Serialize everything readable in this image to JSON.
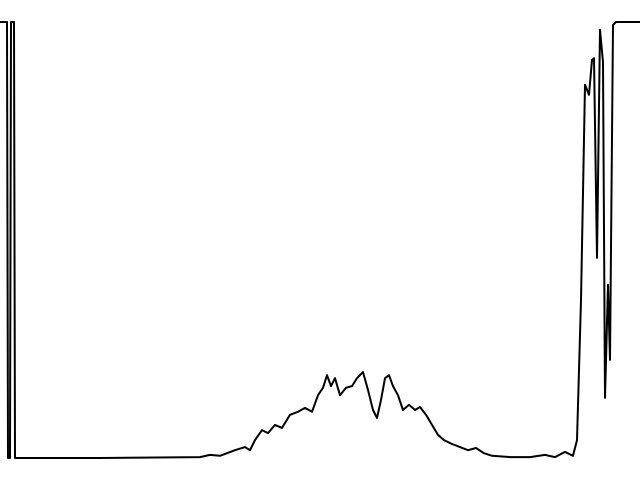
{
  "chart_data": {
    "type": "line",
    "color": "#000000",
    "xlim": [
      0,
      640
    ],
    "ylim": [
      0,
      100
    ],
    "x": [
      0,
      7,
      8,
      10,
      11,
      14,
      15,
      100,
      200,
      210,
      220,
      235,
      245,
      250,
      255,
      262,
      268,
      275,
      282,
      290,
      298,
      305,
      312,
      318,
      323,
      327,
      331,
      335,
      340,
      346,
      352,
      357,
      363,
      368,
      373,
      377,
      381,
      385,
      389,
      393,
      398,
      403,
      409,
      415,
      420,
      426,
      432,
      438,
      444,
      452,
      460,
      468,
      476,
      484,
      492,
      510,
      530,
      545,
      555,
      565,
      573,
      577,
      581,
      585,
      589,
      592,
      594,
      597,
      600,
      603,
      605,
      608,
      610,
      613,
      616,
      640
    ],
    "values": [
      100,
      100,
      0,
      0,
      100,
      100,
      0,
      0,
      0.2,
      0.7,
      0.5,
      1.8,
      2.5,
      1.8,
      4.1,
      6.4,
      5.7,
      7.6,
      6.9,
      9.9,
      10.6,
      11.5,
      10.6,
      14.4,
      16.1,
      19.0,
      16.5,
      18.3,
      14.4,
      16.1,
      16.5,
      18.3,
      19.7,
      15.6,
      11.0,
      9.2,
      13.3,
      18.3,
      19.0,
      16.5,
      14.4,
      11.0,
      12.2,
      11.0,
      11.7,
      9.9,
      7.6,
      5.3,
      4.1,
      3.2,
      2.5,
      1.8,
      2.3,
      1.1,
      0.5,
      0.2,
      0.2,
      0.7,
      0.2,
      1.4,
      0.5,
      4.1,
      36.2,
      85.6,
      83.3,
      91.3,
      91.7,
      45.9,
      98.2,
      90.8,
      13.8,
      39.7,
      22.5,
      99.3,
      100,
      100
    ]
  }
}
